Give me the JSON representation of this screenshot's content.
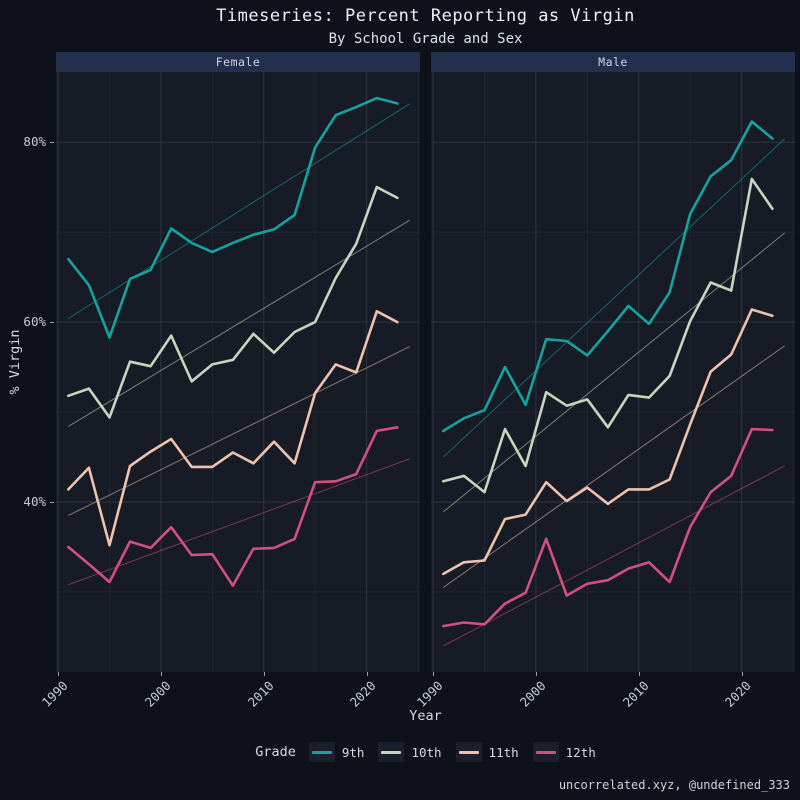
{
  "header": {
    "title": "Timeseries: Percent Reporting as Virgin",
    "subtitle": "By School Grade and Sex"
  },
  "axes": {
    "x_title": "Year",
    "y_title": "% Virgin",
    "x_tick_labels": [
      "1990",
      "2000",
      "2010",
      "2020"
    ],
    "y_tick_labels": [
      "40%",
      "60%",
      "80%"
    ]
  },
  "legend": {
    "title": "Grade",
    "items": [
      {
        "label": "9th",
        "color": "#15a3a1"
      },
      {
        "label": "10th",
        "color": "#c7d6bd"
      },
      {
        "label": "11th",
        "color": "#eec2ae"
      },
      {
        "label": "12th",
        "color": "#d1517c"
      }
    ]
  },
  "caption": "uncorrelated.xyz, @undefined_333",
  "colors": {
    "background": "#0e111a",
    "panel": "#171b25",
    "strip": "#22304e",
    "grid_major": "#2b313d",
    "grid_minor": "#212734",
    "accent_teal": "#15a3a1",
    "accent_sage": "#c7d6bd",
    "accent_peach": "#eec2ae",
    "accent_pink": "#d1517c"
  },
  "chart_data": {
    "type": "line",
    "title": "Timeseries: Percent Reporting as Virgin",
    "subtitle": "By School Grade and Sex",
    "xlabel": "Year",
    "ylabel": "% Virgin",
    "grid": true,
    "legend_position": "bottom",
    "x": [
      1991,
      1993,
      1995,
      1997,
      1999,
      2001,
      2003,
      2005,
      2007,
      2009,
      2011,
      2013,
      2015,
      2017,
      2019,
      2021,
      2023
    ],
    "xlim": [
      1989.8,
      2025.2
    ],
    "ylim": [
      21.1,
      87.8
    ],
    "x_ticks": [
      1990,
      2000,
      2010,
      2020
    ],
    "y_ticks": [
      40,
      60,
      80
    ],
    "x_grid_major": [
      1990,
      2000,
      2010,
      2020
    ],
    "x_grid_minor": [
      1995,
      2005,
      2015,
      2025
    ],
    "y_grid_major": [
      40,
      60,
      80
    ],
    "y_grid_minor": [
      30,
      50,
      70
    ],
    "facets": [
      {
        "label": "Female",
        "series": [
          {
            "name": "9th",
            "color": "#15a3a1",
            "values": [
              67.0,
              64.1,
              58.3,
              64.8,
              65.8,
              70.4,
              68.8,
              67.8,
              68.8,
              69.7,
              70.3,
              71.9,
              79.4,
              83.0,
              83.9,
              84.9,
              84.3
            ]
          },
          {
            "name": "10th",
            "color": "#c7d6bd",
            "values": [
              51.8,
              52.6,
              49.4,
              55.6,
              55.1,
              58.5,
              53.4,
              55.3,
              55.8,
              58.7,
              56.6,
              58.9,
              60.0,
              64.9,
              68.7,
              75.0,
              73.8
            ]
          },
          {
            "name": "11th",
            "color": "#eec2ae",
            "values": [
              41.4,
              43.8,
              35.2,
              44.0,
              45.6,
              47.0,
              43.9,
              43.9,
              45.5,
              44.3,
              46.7,
              44.3,
              52.1,
              55.3,
              54.4,
              61.2,
              60.0
            ]
          },
          {
            "name": "12th",
            "color": "#d1517c",
            "values": [
              35.0,
              33.1,
              31.1,
              35.6,
              34.9,
              37.2,
              34.1,
              34.2,
              30.7,
              34.8,
              34.9,
              35.9,
              42.2,
              42.3,
              43.1,
              47.9,
              48.3
            ]
          }
        ],
        "trends": [
          {
            "name": "9th",
            "color": "#15a3a1",
            "x": [
              1991,
              2023
            ],
            "y": [
              60.4,
              83.4
            ]
          },
          {
            "name": "10th",
            "color": "#c7d6bd",
            "x": [
              1991,
              2023
            ],
            "y": [
              48.4,
              70.5
            ]
          },
          {
            "name": "11th",
            "color": "#eec2ae",
            "x": [
              1991,
              2023
            ],
            "y": [
              38.5,
              56.6
            ]
          },
          {
            "name": "12th",
            "color": "#d1517c",
            "x": [
              1991,
              2023
            ],
            "y": [
              30.8,
              44.3
            ]
          }
        ]
      },
      {
        "label": "Male",
        "series": [
          {
            "name": "9th",
            "color": "#15a3a1",
            "values": [
              47.9,
              49.3,
              50.2,
              55.0,
              50.8,
              58.1,
              57.9,
              56.3,
              59.0,
              61.8,
              59.8,
              63.3,
              72.0,
              76.2,
              78.0,
              82.3,
              80.4
            ]
          },
          {
            "name": "10th",
            "color": "#c7d6bd",
            "values": [
              42.3,
              42.9,
              41.1,
              48.1,
              44.0,
              52.2,
              50.7,
              51.4,
              48.3,
              51.9,
              51.6,
              54.0,
              60.1,
              64.4,
              63.5,
              75.9,
              72.6
            ]
          },
          {
            "name": "11th",
            "color": "#eec2ae",
            "values": [
              32.0,
              33.3,
              33.5,
              38.1,
              38.6,
              42.2,
              40.1,
              41.6,
              39.8,
              41.4,
              41.4,
              42.5,
              48.6,
              54.5,
              56.4,
              61.4,
              60.7
            ]
          },
          {
            "name": "12th",
            "color": "#d1517c",
            "values": [
              26.2,
              26.6,
              26.4,
              28.7,
              29.9,
              35.9,
              29.6,
              30.9,
              31.3,
              32.6,
              33.3,
              31.1,
              37.2,
              41.1,
              42.9,
              48.1,
              48.0
            ]
          }
        ],
        "trends": [
          {
            "name": "9th",
            "color": "#15a3a1",
            "x": [
              1991,
              2023
            ],
            "y": [
              45.0,
              79.1
            ]
          },
          {
            "name": "10th",
            "color": "#c7d6bd",
            "x": [
              1991,
              2023
            ],
            "y": [
              38.9,
              68.8
            ]
          },
          {
            "name": "11th",
            "color": "#eec2ae",
            "x": [
              1991,
              2023
            ],
            "y": [
              30.5,
              56.4
            ]
          },
          {
            "name": "12th",
            "color": "#d1517c",
            "x": [
              1991,
              2023
            ],
            "y": [
              24.0,
              43.3
            ]
          }
        ]
      }
    ]
  }
}
